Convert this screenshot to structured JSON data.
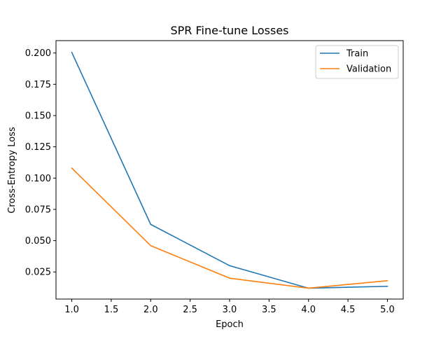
{
  "chart_data": {
    "type": "line",
    "title": "SPR Fine-tune Losses",
    "xlabel": "Epoch",
    "ylabel": "Cross-Entropy Loss",
    "x": [
      1.0,
      2.0,
      3.0,
      4.0,
      5.0
    ],
    "xlim": [
      0.8,
      5.2
    ],
    "ylim": [
      0.0033,
      0.2099
    ],
    "xticks": [
      1.0,
      1.5,
      2.0,
      2.5,
      3.0,
      3.5,
      4.0,
      4.5,
      5.0
    ],
    "xtick_labels": [
      "1.0",
      "1.5",
      "2.0",
      "2.5",
      "3.0",
      "3.5",
      "4.0",
      "4.5",
      "5.0"
    ],
    "yticks": [
      0.025,
      0.05,
      0.075,
      0.1,
      0.125,
      0.15,
      0.175,
      0.2
    ],
    "ytick_labels": [
      "0.025",
      "0.050",
      "0.075",
      "0.100",
      "0.125",
      "0.150",
      "0.175",
      "0.200"
    ],
    "grid": false,
    "legend_position": "top-right",
    "series": [
      {
        "name": "Train",
        "color": "#1f77b4",
        "values": [
          0.2005,
          0.063,
          0.03,
          0.012,
          0.0135
        ]
      },
      {
        "name": "Validation",
        "color": "#ff7f0e",
        "values": [
          0.108,
          0.046,
          0.02,
          0.012,
          0.018
        ]
      }
    ]
  }
}
